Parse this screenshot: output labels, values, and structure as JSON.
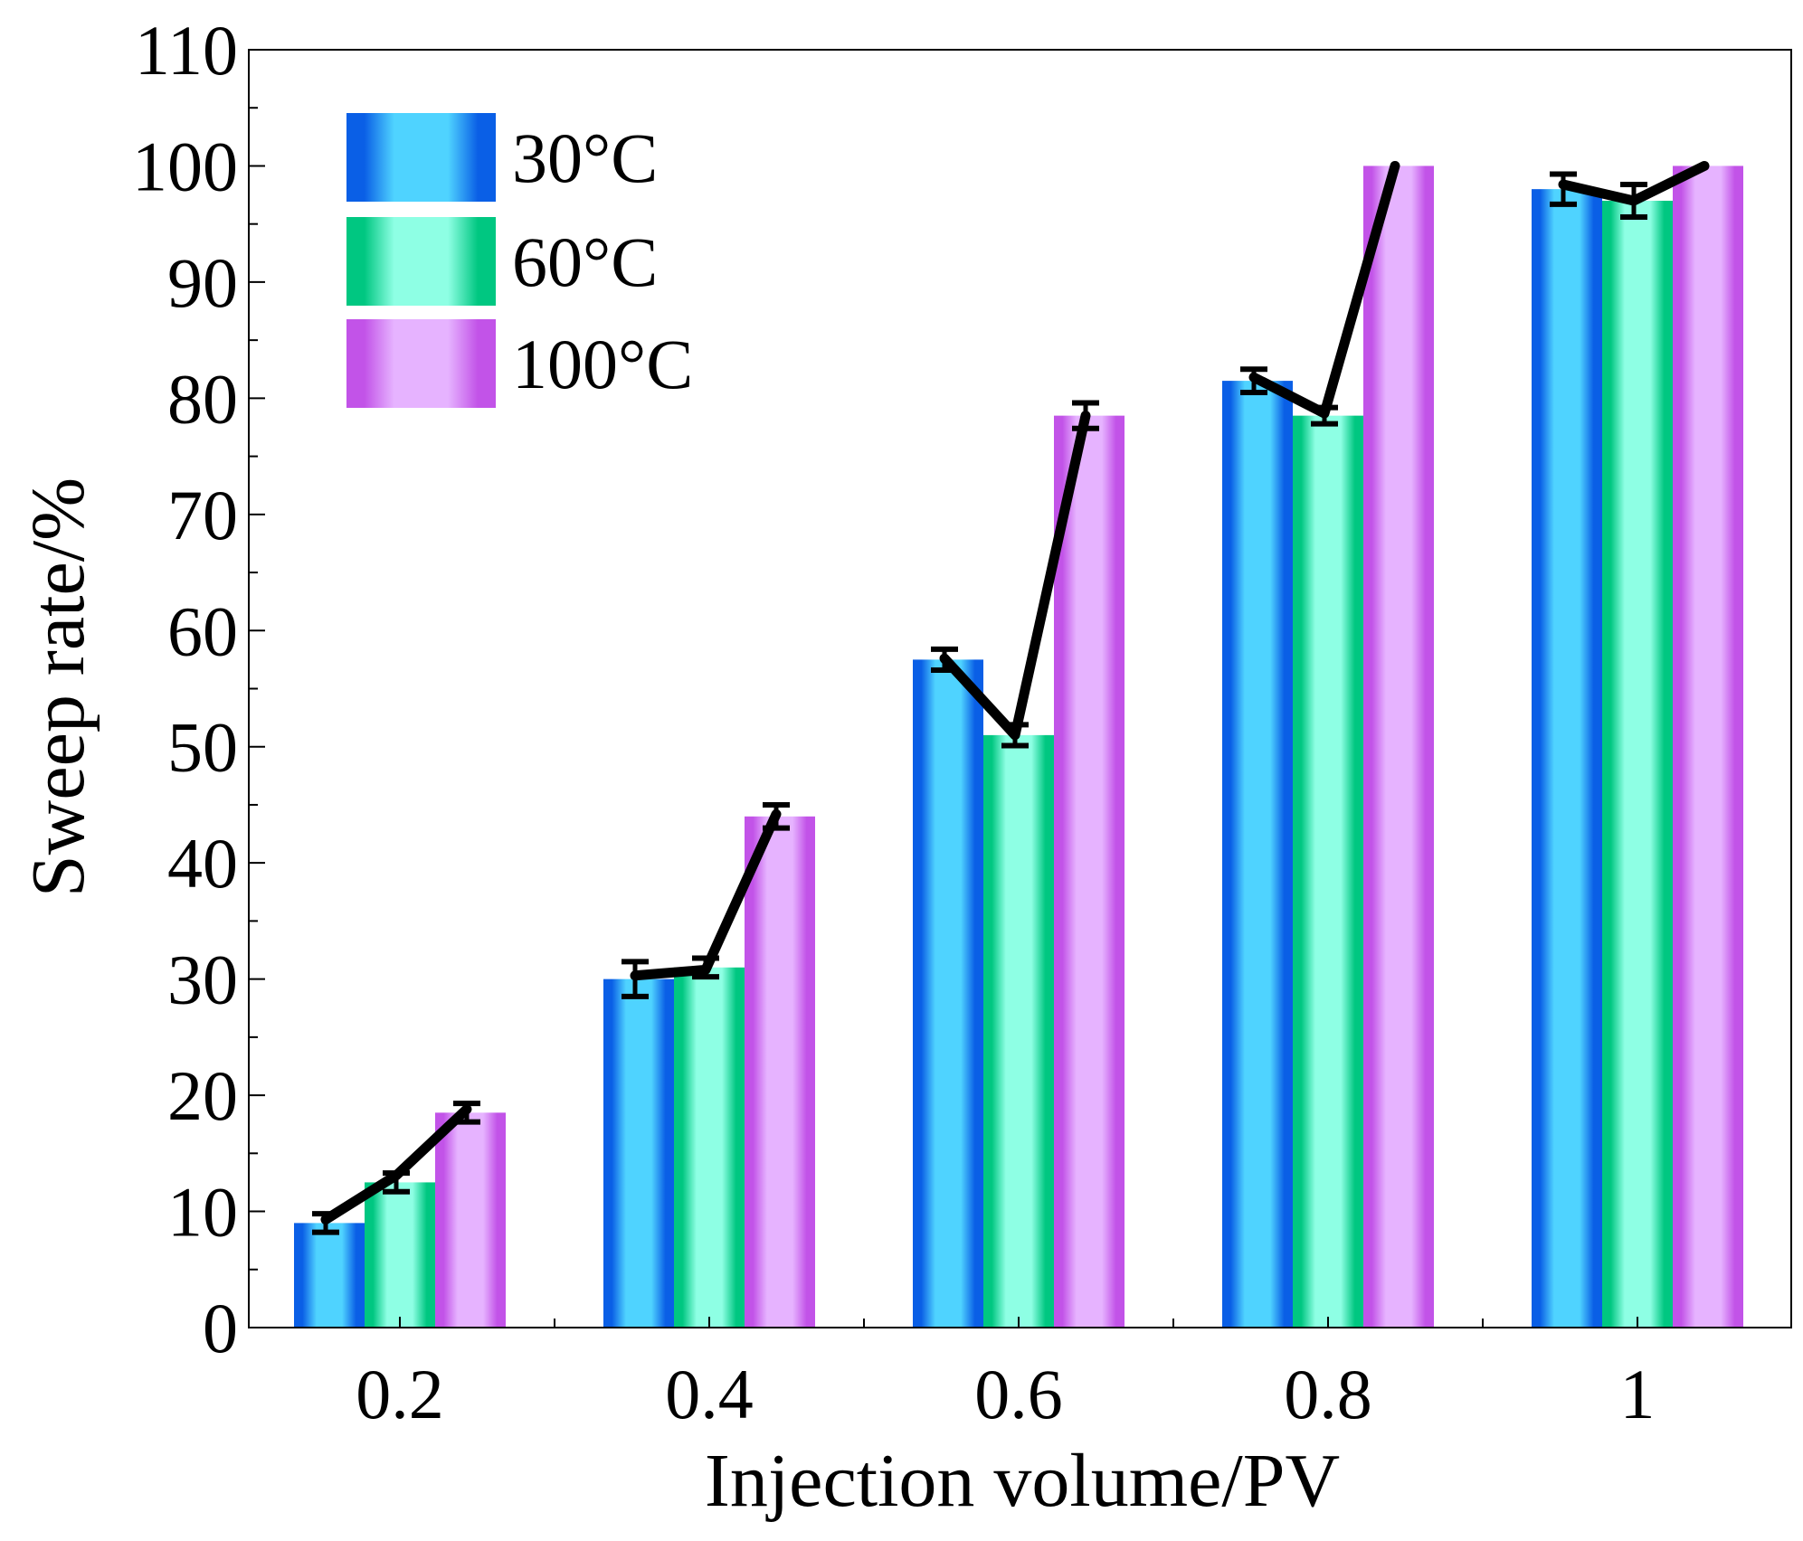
{
  "chart_data": {
    "type": "bar",
    "title": "",
    "xlabel": "Injection volume/PV",
    "ylabel": "Sweep rate/%",
    "ylim": [
      0,
      110
    ],
    "yticks": [
      0,
      10,
      20,
      30,
      40,
      50,
      60,
      70,
      80,
      90,
      100,
      110
    ],
    "grid": false,
    "legend": "top-left",
    "categories": [
      "0.2",
      "0.4",
      "0.6",
      "0.8",
      "1"
    ],
    "series": [
      {
        "name": "30°C",
        "values": [
          9,
          30,
          57.5,
          81.5,
          98
        ],
        "errors": [
          0.8,
          1.5,
          0.9,
          1.0,
          1.3
        ],
        "colors": {
          "dark": "#0a5fe6",
          "light": "#4fd3ff"
        }
      },
      {
        "name": "60°C",
        "values": [
          12.5,
          31,
          51,
          78.5,
          97
        ],
        "errors": [
          0.8,
          0.8,
          0.9,
          0.7,
          1.4
        ],
        "colors": {
          "dark": "#00c781",
          "light": "#8effe4"
        }
      },
      {
        "name": "100°C",
        "values": [
          18.5,
          44,
          78.5,
          100,
          100
        ],
        "errors": [
          0.8,
          1.0,
          1.1,
          0,
          0
        ],
        "colors": {
          "dark": "#c253e8",
          "light": "#e6b3ff"
        }
      }
    ],
    "connector_line": {
      "color": "#000000",
      "points": [
        [
          9.3,
          13.1,
          18.8
        ],
        [
          30.3,
          30.8,
          44.2
        ],
        [
          57.6,
          51,
          78.5
        ],
        [
          81.8,
          78.7,
          100
        ],
        [
          98.4,
          97,
          100
        ]
      ]
    }
  }
}
